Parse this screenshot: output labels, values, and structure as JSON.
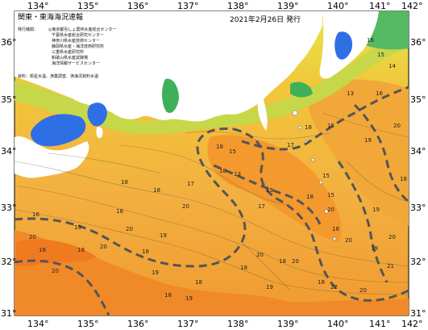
{
  "map": {
    "title": "関東・東海海況速報",
    "date": "2021年2月26日 発行",
    "agencies_label": "発行機関：",
    "agencies": [
      "◎東京都島しょ農林水産総合センター",
      "千葉県水産総合研究センター",
      "神奈川県水産技術センター",
      "静岡県水産・海洋技術研究所",
      "三重県水産研究所",
      "和歌山県水産試験場",
      "海洋情報サービスセンター"
    ],
    "sources_note": "資料：衛星水温、漁業調査、漁海況資料水温",
    "lon_labels": [
      "134°",
      "135°",
      "136°",
      "137°",
      "138°",
      "139°",
      "140°",
      "141°",
      "142°"
    ],
    "lat_labels": [
      "36°",
      "35°",
      "34°",
      "33°",
      "32°",
      "31°"
    ],
    "temperature_labels": [
      {
        "text": "16"
      },
      {
        "text": "15"
      },
      {
        "text": "14"
      },
      {
        "text": "13"
      },
      {
        "text": "16"
      },
      {
        "text": "18"
      },
      {
        "text": "15"
      },
      {
        "text": "18"
      },
      {
        "text": "15"
      },
      {
        "text": "17"
      },
      {
        "text": "19"
      },
      {
        "text": "20"
      },
      {
        "text": "18"
      },
      {
        "text": "18"
      },
      {
        "text": "20"
      },
      {
        "text": "17"
      },
      {
        "text": "15"
      },
      {
        "text": "19"
      },
      {
        "text": "13"
      },
      {
        "text": "18"
      },
      {
        "text": "20"
      },
      {
        "text": "16"
      },
      {
        "text": "18"
      },
      {
        "text": "18"
      },
      {
        "text": "19"
      },
      {
        "text": "18"
      },
      {
        "text": "18"
      },
      {
        "text": "19"
      },
      {
        "text": "18"
      },
      {
        "text": "20"
      },
      {
        "text": "16"
      },
      {
        "text": "18"
      },
      {
        "text": "20"
      },
      {
        "text": "17"
      },
      {
        "text": "15"
      },
      {
        "text": "20"
      },
      {
        "text": "18"
      },
      {
        "text": "20"
      },
      {
        "text": "18"
      },
      {
        "text": "19"
      },
      {
        "text": "18"
      },
      {
        "text": "20"
      },
      {
        "text": "20"
      },
      {
        "text": "19"
      },
      {
        "text": "20"
      },
      {
        "text": "19"
      },
      {
        "text": "18"
      },
      {
        "text": "22"
      },
      {
        "text": "20"
      },
      {
        "text": "21"
      },
      {
        "text": "19"
      },
      {
        "text": "20"
      },
      {
        "text": "19"
      },
      {
        "text": "18"
      }
    ],
    "colors": {
      "land": "#ffffff",
      "cold_water": "#2f6fe6",
      "cool_water": "#3fb05a",
      "mid_water": "#e9d23a",
      "warm_water": "#f3a53a",
      "hot_water": "#f07a20",
      "kuroshio_axis": "#5a5a5a"
    }
  }
}
